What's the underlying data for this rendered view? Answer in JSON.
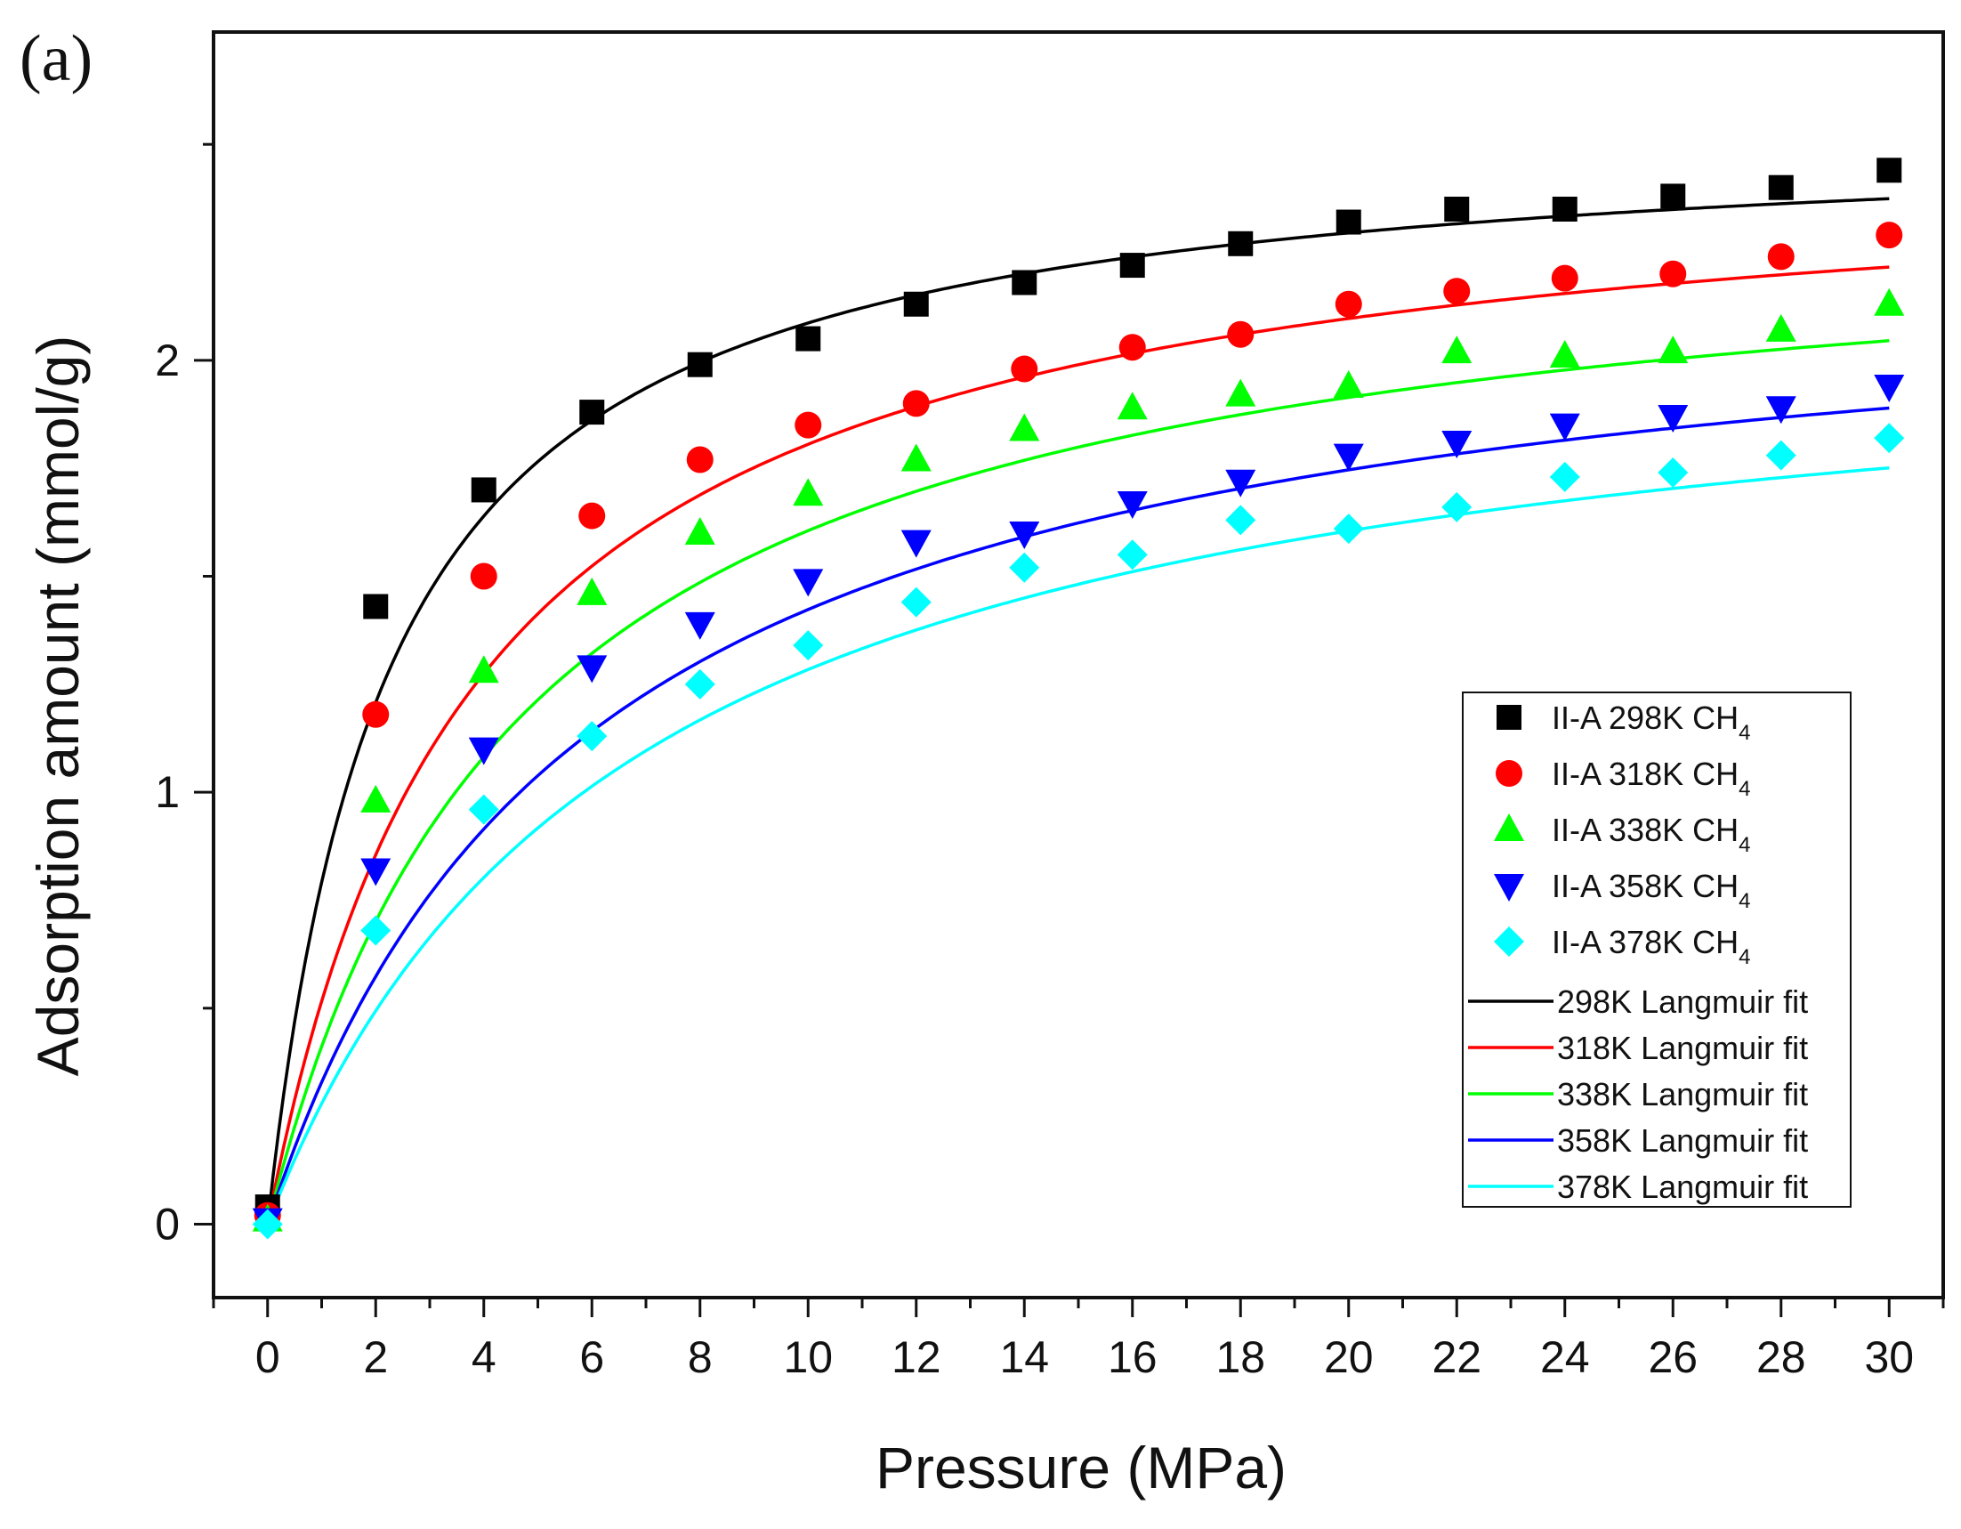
{
  "panel_label": "(a)",
  "chart_data": {
    "type": "scatter",
    "title": "",
    "xlabel": "Pressure (MPa)",
    "ylabel": "Adsorption amount (mmol/g)",
    "xlim": [
      -1,
      31
    ],
    "ylim": [
      -0.17,
      2.76
    ],
    "x_ticks": [
      0,
      2,
      4,
      6,
      8,
      10,
      12,
      14,
      16,
      18,
      20,
      22,
      24,
      26,
      28,
      30
    ],
    "x_tick_labels": [
      "0",
      "2",
      "4",
      "6",
      "8",
      "10",
      "12",
      "14",
      "16",
      "18",
      "20",
      "22",
      "24",
      "26",
      "28",
      "30"
    ],
    "y_ticks": [
      0,
      1,
      2
    ],
    "y_tick_labels": [
      "0",
      "1",
      "2"
    ],
    "legend_position": "lower-right",
    "x": [
      0,
      2,
      4,
      6,
      8,
      10,
      12,
      14,
      16,
      18,
      20,
      22,
      24,
      26,
      28,
      30
    ],
    "series": [
      {
        "name": "II-A 298K CH",
        "subscript": "4",
        "marker": "square",
        "color": "#000000",
        "values": [
          0.04,
          1.43,
          1.7,
          1.88,
          1.99,
          2.05,
          2.13,
          2.18,
          2.22,
          2.27,
          2.32,
          2.35,
          2.35,
          2.38,
          2.4,
          2.44
        ]
      },
      {
        "name": "II-A 318K CH",
        "subscript": "4",
        "marker": "circle",
        "color": "#ff0000",
        "values": [
          0.02,
          1.18,
          1.5,
          1.64,
          1.77,
          1.85,
          1.9,
          1.98,
          2.03,
          2.06,
          2.13,
          2.16,
          2.19,
          2.2,
          2.24,
          2.29
        ]
      },
      {
        "name": "II-A 338K CH",
        "subscript": "4",
        "marker": "triangle-up",
        "color": "#00ff00",
        "values": [
          0.01,
          0.98,
          1.28,
          1.46,
          1.6,
          1.69,
          1.77,
          1.84,
          1.89,
          1.92,
          1.94,
          2.02,
          2.01,
          2.02,
          2.07,
          2.13
        ]
      },
      {
        "name": "II-A 358K CH",
        "subscript": "4",
        "marker": "triangle-down",
        "color": "#0000ff",
        "values": [
          0.01,
          0.82,
          1.1,
          1.29,
          1.39,
          1.49,
          1.58,
          1.6,
          1.67,
          1.72,
          1.78,
          1.81,
          1.85,
          1.87,
          1.89,
          1.94
        ]
      },
      {
        "name": "II-A 378K CH",
        "subscript": "4",
        "marker": "diamond",
        "color": "#00ffff",
        "values": [
          0.0,
          0.68,
          0.96,
          1.13,
          1.25,
          1.34,
          1.44,
          1.52,
          1.55,
          1.63,
          1.61,
          1.66,
          1.73,
          1.74,
          1.78,
          1.82
        ]
      }
    ],
    "fits": [
      {
        "name": "298K Langmuir fit",
        "color": "#000000",
        "qmax": 2.55,
        "b": 0.45
      },
      {
        "name": "318K Langmuir fit",
        "color": "#ff0000",
        "qmax": 2.5,
        "b": 0.26
      },
      {
        "name": "338K Langmuir fit",
        "color": "#00ff00",
        "qmax": 2.37,
        "b": 0.21
      },
      {
        "name": "358K Langmuir fit",
        "color": "#0000ff",
        "qmax": 2.26,
        "b": 0.17
      },
      {
        "name": "378K Langmuir fit",
        "color": "#00ffff",
        "qmax": 2.14,
        "b": 0.15
      }
    ]
  }
}
